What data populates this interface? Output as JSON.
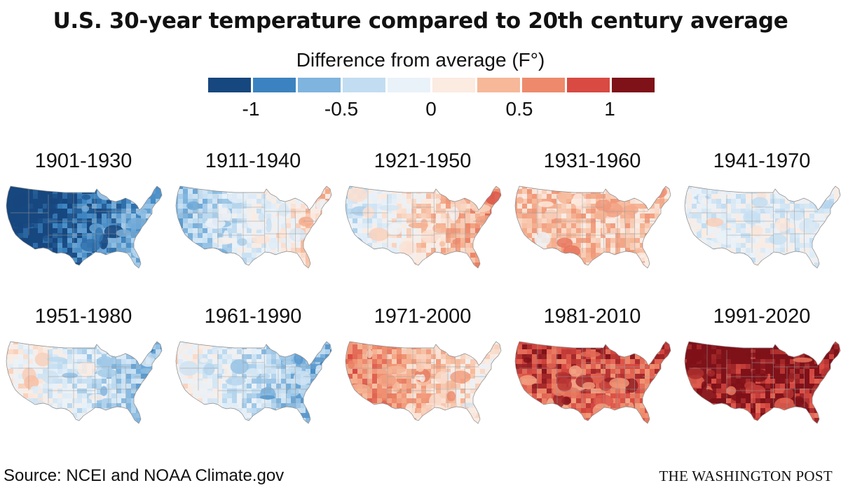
{
  "title": "U.S. 30-year temperature compared to 20th century average",
  "legend": {
    "title": "Difference from average (F°)",
    "colors": [
      "#17477f",
      "#3b83c0",
      "#7fb4de",
      "#c2ddf1",
      "#eaf2f9",
      "#fbebe1",
      "#f6b899",
      "#ee8a6b",
      "#d84a42",
      "#7f1119"
    ],
    "ticks": [
      "-1",
      "-0.5",
      "0",
      "0.5",
      "1"
    ]
  },
  "maps": [
    {
      "period": "1901-1930",
      "pattern": "cold-west",
      "anomaly": -0.8
    },
    {
      "period": "1911-1940",
      "pattern": "warm-east",
      "anomaly": -0.15
    },
    {
      "period": "1921-1950",
      "pattern": "warm-east",
      "anomaly": 0.2
    },
    {
      "period": "1931-1960",
      "pattern": "uniform",
      "anomaly": 0.35
    },
    {
      "period": "1941-1970",
      "pattern": "uniform",
      "anomaly": -0.15
    },
    {
      "period": "1951-1980",
      "pattern": "cold-east",
      "anomaly": -0.2
    },
    {
      "period": "1961-1990",
      "pattern": "cold-east",
      "anomaly": -0.25
    },
    {
      "period": "1971-2000",
      "pattern": "warm-west",
      "anomaly": 0.3
    },
    {
      "period": "1981-2010",
      "pattern": "warm-north",
      "anomaly": 0.85
    },
    {
      "period": "1991-2020",
      "pattern": "warm-north",
      "anomaly": 1.15
    }
  ],
  "source": "Source: NCEI and NOAA Climate.gov",
  "credit": "THE WASHINGTON POST"
}
